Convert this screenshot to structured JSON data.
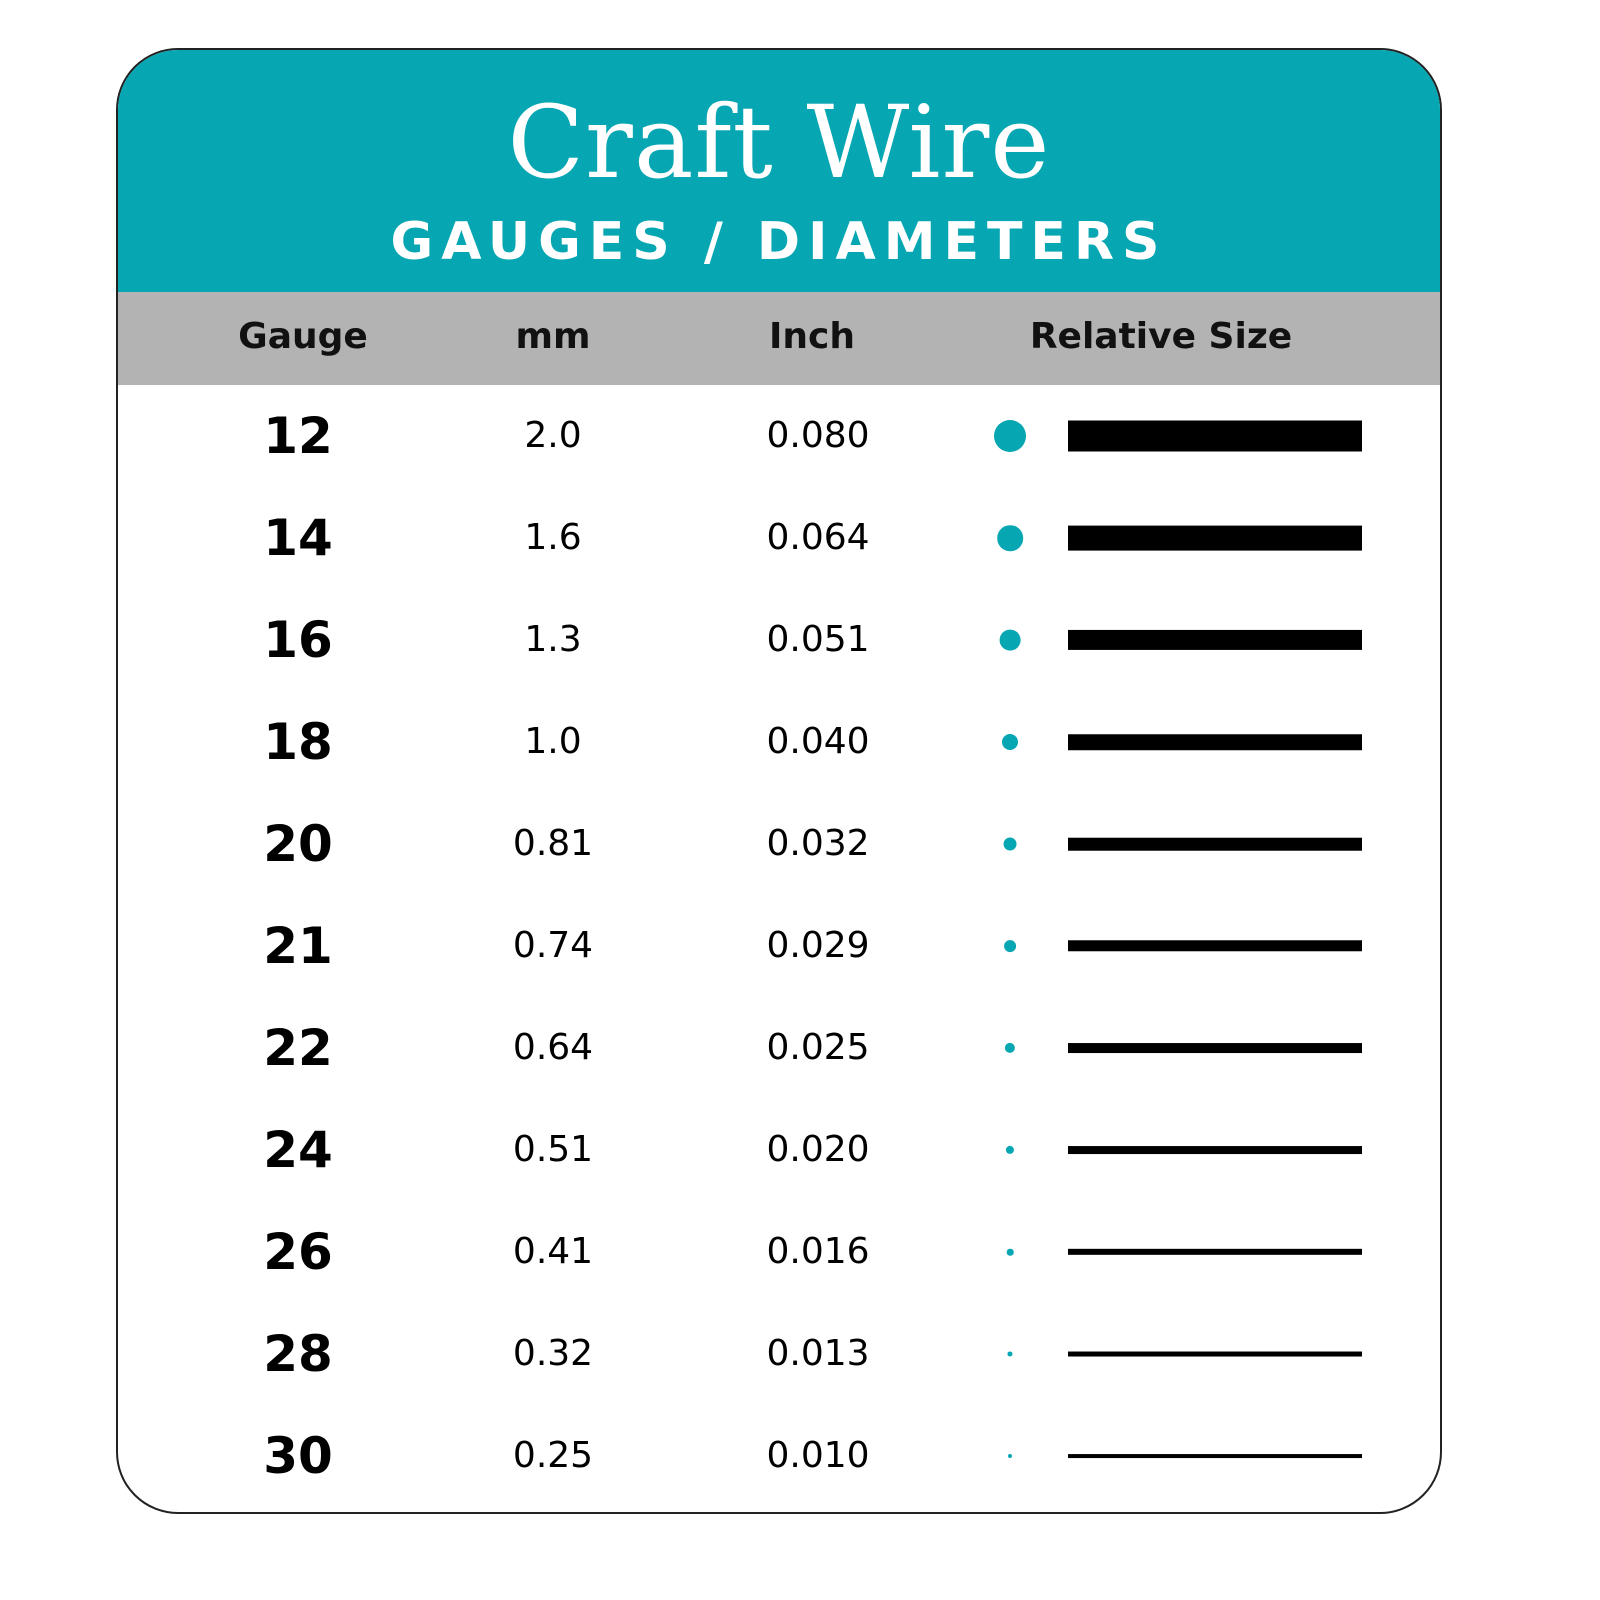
{
  "header": {
    "title": "Craft Wire",
    "subtitle": "GAUGES / DIAMETERS"
  },
  "colors": {
    "accent": "#06a6b2",
    "header_row": "#b3b3b3",
    "bar": "#000000"
  },
  "chart_data": {
    "type": "table",
    "columns": [
      "Gauge",
      "mm",
      "Inch",
      "Relative Size"
    ],
    "rows": [
      {
        "gauge": "12",
        "mm": "2.0",
        "inch": "0.080"
      },
      {
        "gauge": "14",
        "mm": "1.6",
        "inch": "0.064"
      },
      {
        "gauge": "16",
        "mm": "1.3",
        "inch": "0.051"
      },
      {
        "gauge": "18",
        "mm": "1.0",
        "inch": "0.040"
      },
      {
        "gauge": "20",
        "mm": "0.81",
        "inch": "0.032"
      },
      {
        "gauge": "21",
        "mm": "0.74",
        "inch": "0.029"
      },
      {
        "gauge": "22",
        "mm": "0.64",
        "inch": "0.025"
      },
      {
        "gauge": "24",
        "mm": "0.51",
        "inch": "0.020"
      },
      {
        "gauge": "26",
        "mm": "0.41",
        "inch": "0.016"
      },
      {
        "gauge": "28",
        "mm": "0.32",
        "inch": "0.013"
      },
      {
        "gauge": "30",
        "mm": "0.25",
        "inch": "0.010"
      }
    ]
  }
}
